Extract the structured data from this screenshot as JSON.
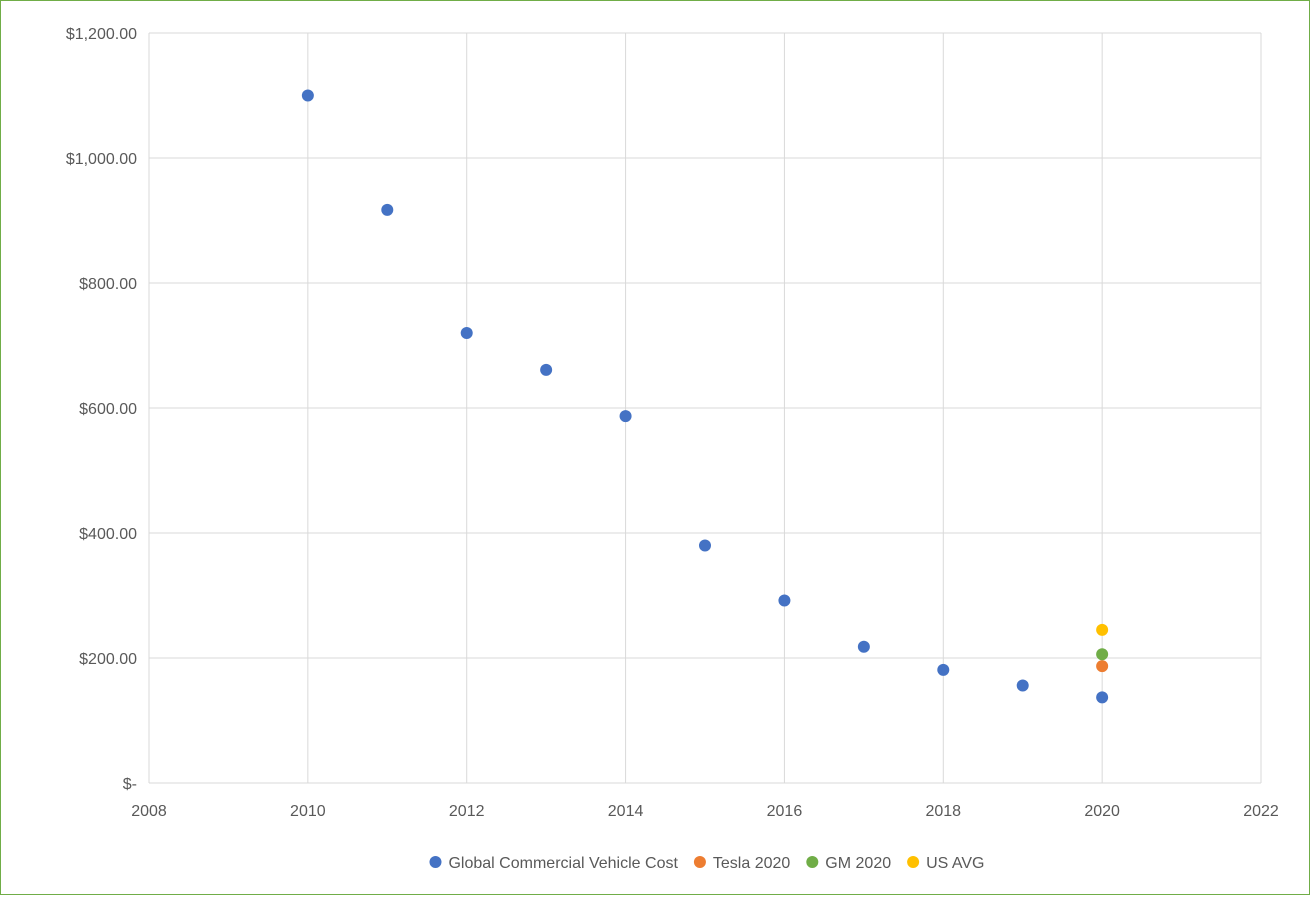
{
  "chart_data": {
    "type": "scatter",
    "title": "",
    "xlabel": "",
    "ylabel": "",
    "xlim": [
      2008,
      2022
    ],
    "ylim": [
      0,
      1200
    ],
    "x_ticks": [
      2008,
      2010,
      2012,
      2014,
      2016,
      2018,
      2020,
      2022
    ],
    "x_tick_labels": [
      "2008",
      "2010",
      "2012",
      "2014",
      "2016",
      "2018",
      "2020",
      "2022"
    ],
    "y_ticks": [
      0,
      200,
      400,
      600,
      800,
      1000,
      1200
    ],
    "y_tick_labels": [
      "$-",
      "$200.00",
      "$400.00",
      "$600.00",
      "$800.00",
      "$1,000.00",
      "$1,200.00"
    ],
    "grid": true,
    "legend_position": "bottom",
    "series": [
      {
        "name": "Global Commercial Vehicle Cost",
        "color": "#4472c4",
        "x": [
          2010,
          2011,
          2012,
          2013,
          2014,
          2015,
          2016,
          2017,
          2018,
          2019,
          2020
        ],
        "y": [
          1100,
          917,
          720,
          661,
          587,
          380,
          292,
          218,
          181,
          156,
          137
        ]
      },
      {
        "name": "Tesla 2020",
        "color": "#ed7d31",
        "x": [
          2020
        ],
        "y": [
          187
        ]
      },
      {
        "name": "GM 2020",
        "color": "#70ad47",
        "x": [
          2020
        ],
        "y": [
          206
        ]
      },
      {
        "name": "US AVG",
        "color": "#ffc000",
        "x": [
          2020
        ],
        "y": [
          245
        ]
      }
    ]
  }
}
